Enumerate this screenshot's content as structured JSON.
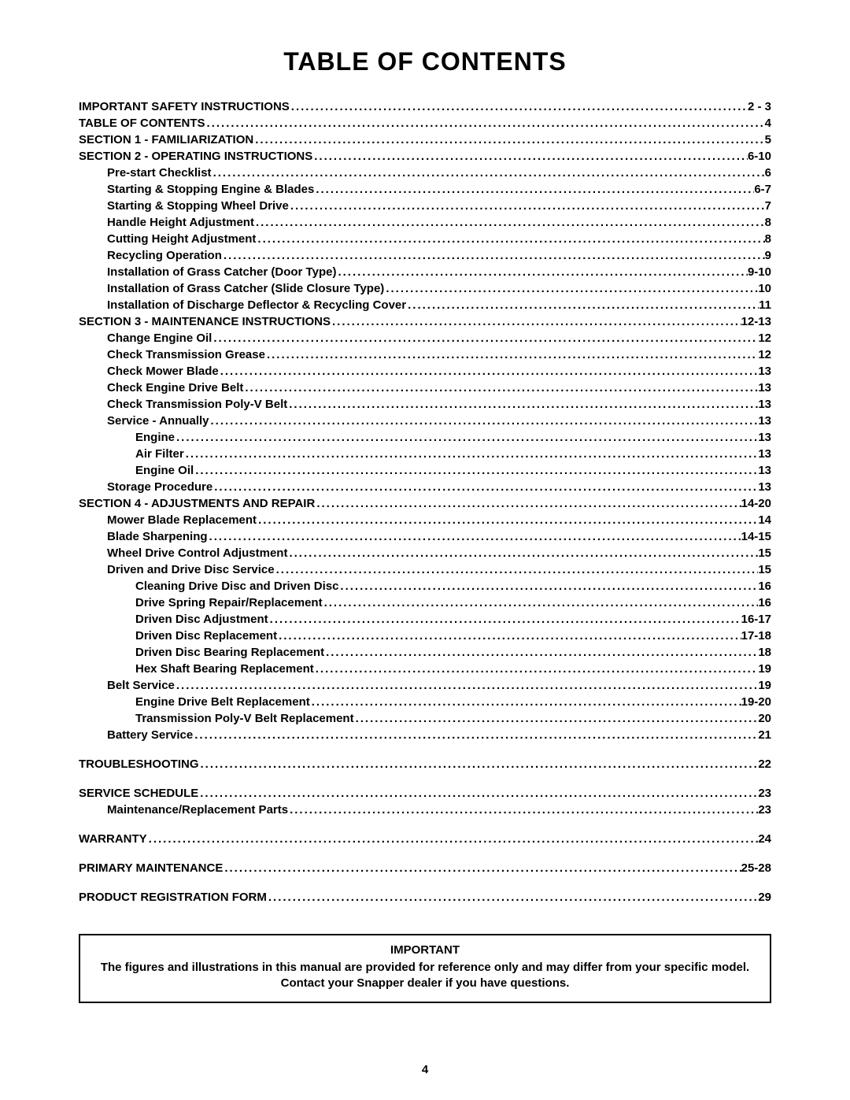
{
  "title": "Table Of Contents",
  "page_number": "4",
  "toc": [
    {
      "label": "IMPORTANT SAFETY INSTRUCTIONS",
      "page": " 2 - 3",
      "indent": 0
    },
    {
      "label": "TABLE OF CONTENTS",
      "page": "4",
      "indent": 0
    },
    {
      "label": "SECTION 1 - FAMILIARIZATION",
      "page": "5",
      "indent": 0
    },
    {
      "label": "SECTION 2 - OPERATING INSTRUCTIONS",
      "page": " 6-10",
      "indent": 0
    },
    {
      "label": "Pre-start Checklist",
      "page": "6",
      "indent": 1,
      "mixed": true
    },
    {
      "label": "Starting & Stopping Engine & Blades",
      "page": " 6-7",
      "indent": 1,
      "mixed": true
    },
    {
      "label": "Starting & Stopping Wheel Drive",
      "page": "7",
      "indent": 1,
      "mixed": true
    },
    {
      "label": "Handle Height Adjustment",
      "page": "8",
      "indent": 1,
      "mixed": true
    },
    {
      "label": "Cutting Height Adjustment",
      "page": "8",
      "indent": 1,
      "mixed": true
    },
    {
      "label": "Recycling Operation",
      "page": "9",
      "indent": 1,
      "mixed": true
    },
    {
      "label": "Installation of Grass Catcher (Door Type)",
      "page": " 9-10",
      "indent": 1,
      "mixed": true
    },
    {
      "label": "Installation of Grass Catcher (Slide Closure Type)",
      "page": "10",
      "indent": 1,
      "mixed": true
    },
    {
      "label": "Installation of Discharge Deflector & Recycling Cover",
      "page": "11",
      "indent": 1,
      "mixed": true
    },
    {
      "label": "SECTION 3 - MAINTENANCE INSTRUCTIONS",
      "page": " 12-13",
      "indent": 0
    },
    {
      "label": "Change Engine Oil",
      "page": "12",
      "indent": 1,
      "mixed": true
    },
    {
      "label": "Check Transmission Grease",
      "page": "12",
      "indent": 1,
      "mixed": true
    },
    {
      "label": "Check Mower Blade",
      "page": "13",
      "indent": 1,
      "mixed": true
    },
    {
      "label": "Check Engine Drive Belt",
      "page": "13",
      "indent": 1,
      "mixed": true
    },
    {
      "label": "Check Transmission Poly-V Belt",
      "page": "13",
      "indent": 1,
      "mixed": true
    },
    {
      "label": "Service - Annually",
      "page": "13",
      "indent": 1,
      "mixed": true
    },
    {
      "label": "Engine",
      "page": "13",
      "indent": 2,
      "mixed": true
    },
    {
      "label": "Air Filter",
      "page": "13",
      "indent": 2,
      "mixed": true
    },
    {
      "label": "Engine Oil",
      "page": "13",
      "indent": 2,
      "mixed": true
    },
    {
      "label": "Storage Procedure",
      "page": "13",
      "indent": 1,
      "mixed": true
    },
    {
      "label": "SECTION 4 - ADJUSTMENTS AND REPAIR",
      "page": " 14-20",
      "indent": 0
    },
    {
      "label": "Mower Blade Replacement",
      "page": "14",
      "indent": 1,
      "mixed": true
    },
    {
      "label": "Blade Sharpening",
      "page": " 14-15",
      "indent": 1,
      "mixed": true
    },
    {
      "label": "Wheel Drive Control Adjustment",
      "page": "15",
      "indent": 1,
      "mixed": true
    },
    {
      "label": "Driven and Drive Disc Service",
      "page": "15",
      "indent": 1,
      "mixed": true
    },
    {
      "label": "Cleaning Drive Disc and Driven Disc",
      "page": "16",
      "indent": 2,
      "mixed": true
    },
    {
      "label": "Drive Spring Repair/Replacement",
      "page": "16",
      "indent": 2,
      "mixed": true
    },
    {
      "label": "Driven Disc Adjustment",
      "page": " 16-17",
      "indent": 2,
      "mixed": true
    },
    {
      "label": "Driven Disc Replacement",
      "page": " 17-18",
      "indent": 2,
      "mixed": true
    },
    {
      "label": "Driven Disc Bearing Replacement",
      "page": "18",
      "indent": 2,
      "mixed": true
    },
    {
      "label": "Hex Shaft Bearing Replacement",
      "page": "19",
      "indent": 2,
      "mixed": true
    },
    {
      "label": "Belt Service",
      "page": "19",
      "indent": 1,
      "mixed": true
    },
    {
      "label": "Engine Drive Belt Replacement",
      "page": " 19-20",
      "indent": 2,
      "mixed": true
    },
    {
      "label": "Transmission Poly-V Belt Replacement",
      "page": "20",
      "indent": 2,
      "mixed": true
    },
    {
      "label": "Battery Service",
      "page": "21",
      "indent": 1,
      "mixed": true
    },
    {
      "gap": true
    },
    {
      "label": "TROUBLESHOOTING",
      "page": "22",
      "indent": 0
    },
    {
      "gap": true
    },
    {
      "label": "SERVICE SCHEDULE",
      "page": "23",
      "indent": 0
    },
    {
      "label": "Maintenance/Replacement Parts",
      "page": "23",
      "indent": 1,
      "mixed": true
    },
    {
      "gap": true
    },
    {
      "label": "WARRANTY",
      "page": "24",
      "indent": 0
    },
    {
      "gap": true
    },
    {
      "label": "PRIMARY MAINTENANCE",
      "page": " 25-28",
      "indent": 0
    },
    {
      "gap": true
    },
    {
      "label": "PRODUCT REGISTRATION FORM",
      "page": "29",
      "indent": 0
    }
  ],
  "important": {
    "heading": "Important",
    "body": "The figures and illustrations in this manual are provided for reference only and may differ from your specific model. Contact your Snapper dealer if you have questions."
  }
}
